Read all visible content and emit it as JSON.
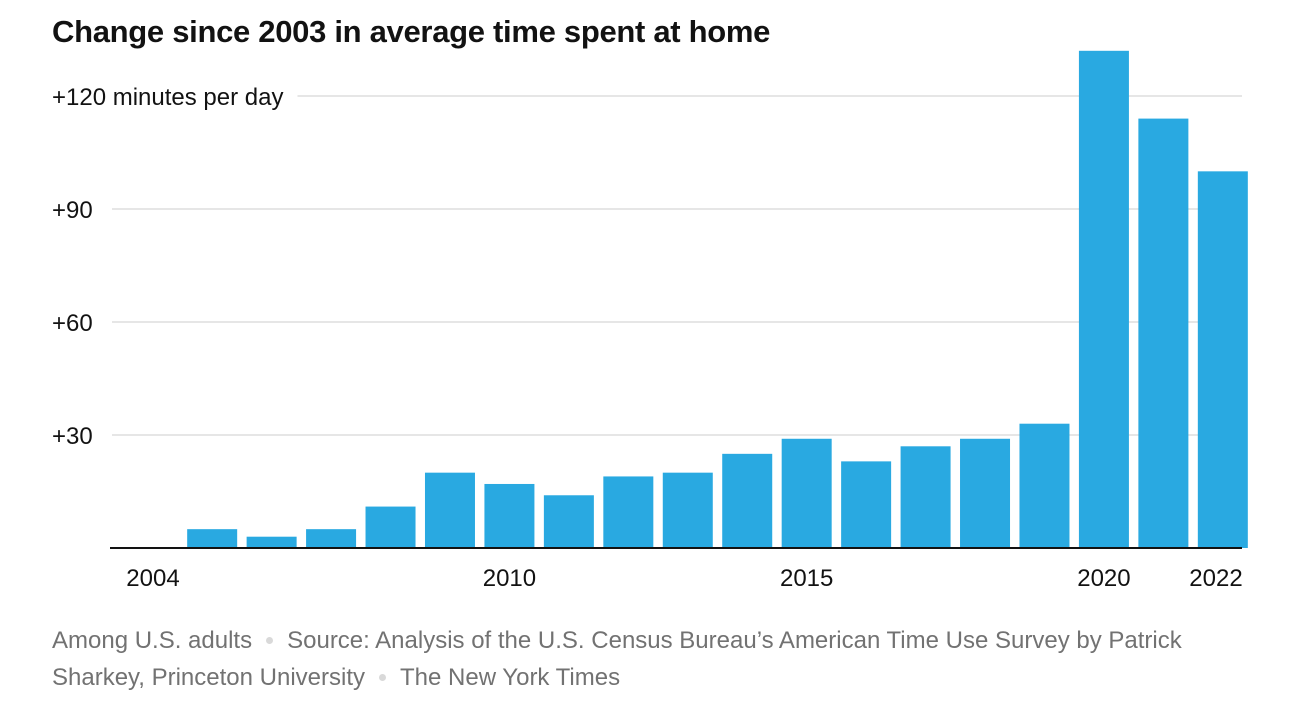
{
  "chart_data": {
    "type": "bar",
    "title": "Change since 2003 in average time spent at home",
    "xlabel": "",
    "ylabel": "minutes per day",
    "ylim": [
      0,
      128
    ],
    "yticks": [
      {
        "value": 30,
        "label": "+30"
      },
      {
        "value": 60,
        "label": "+60"
      },
      {
        "value": 90,
        "label": "+90"
      },
      {
        "value": 120,
        "label": "+120 minutes per day"
      }
    ],
    "xticks": [
      "2004",
      "2010",
      "2015",
      "2020",
      "2022"
    ],
    "categories": [
      "2004",
      "2005",
      "2006",
      "2007",
      "2008",
      "2009",
      "2010",
      "2011",
      "2012",
      "2013",
      "2014",
      "2015",
      "2016",
      "2017",
      "2018",
      "2019",
      "2020",
      "2021",
      "2022"
    ],
    "values": [
      null,
      5,
      3,
      5,
      11,
      20,
      17,
      14,
      19,
      20,
      25,
      29,
      23,
      27,
      29,
      33,
      132,
      114,
      100
    ],
    "bar_color": "#29a9e1",
    "grid": true
  },
  "footer": {
    "note": "Among U.S. adults",
    "source": "Source: Analysis of the U.S. Census Bureau’s American Time Use Survey by Patrick Sharkey, Princeton University",
    "credit": "The New York Times"
  },
  "colors": {
    "bar": "#29a9e1",
    "grid": "#cccccc",
    "axis": "#121212",
    "text": "#121212",
    "footer_text": "#727272"
  }
}
